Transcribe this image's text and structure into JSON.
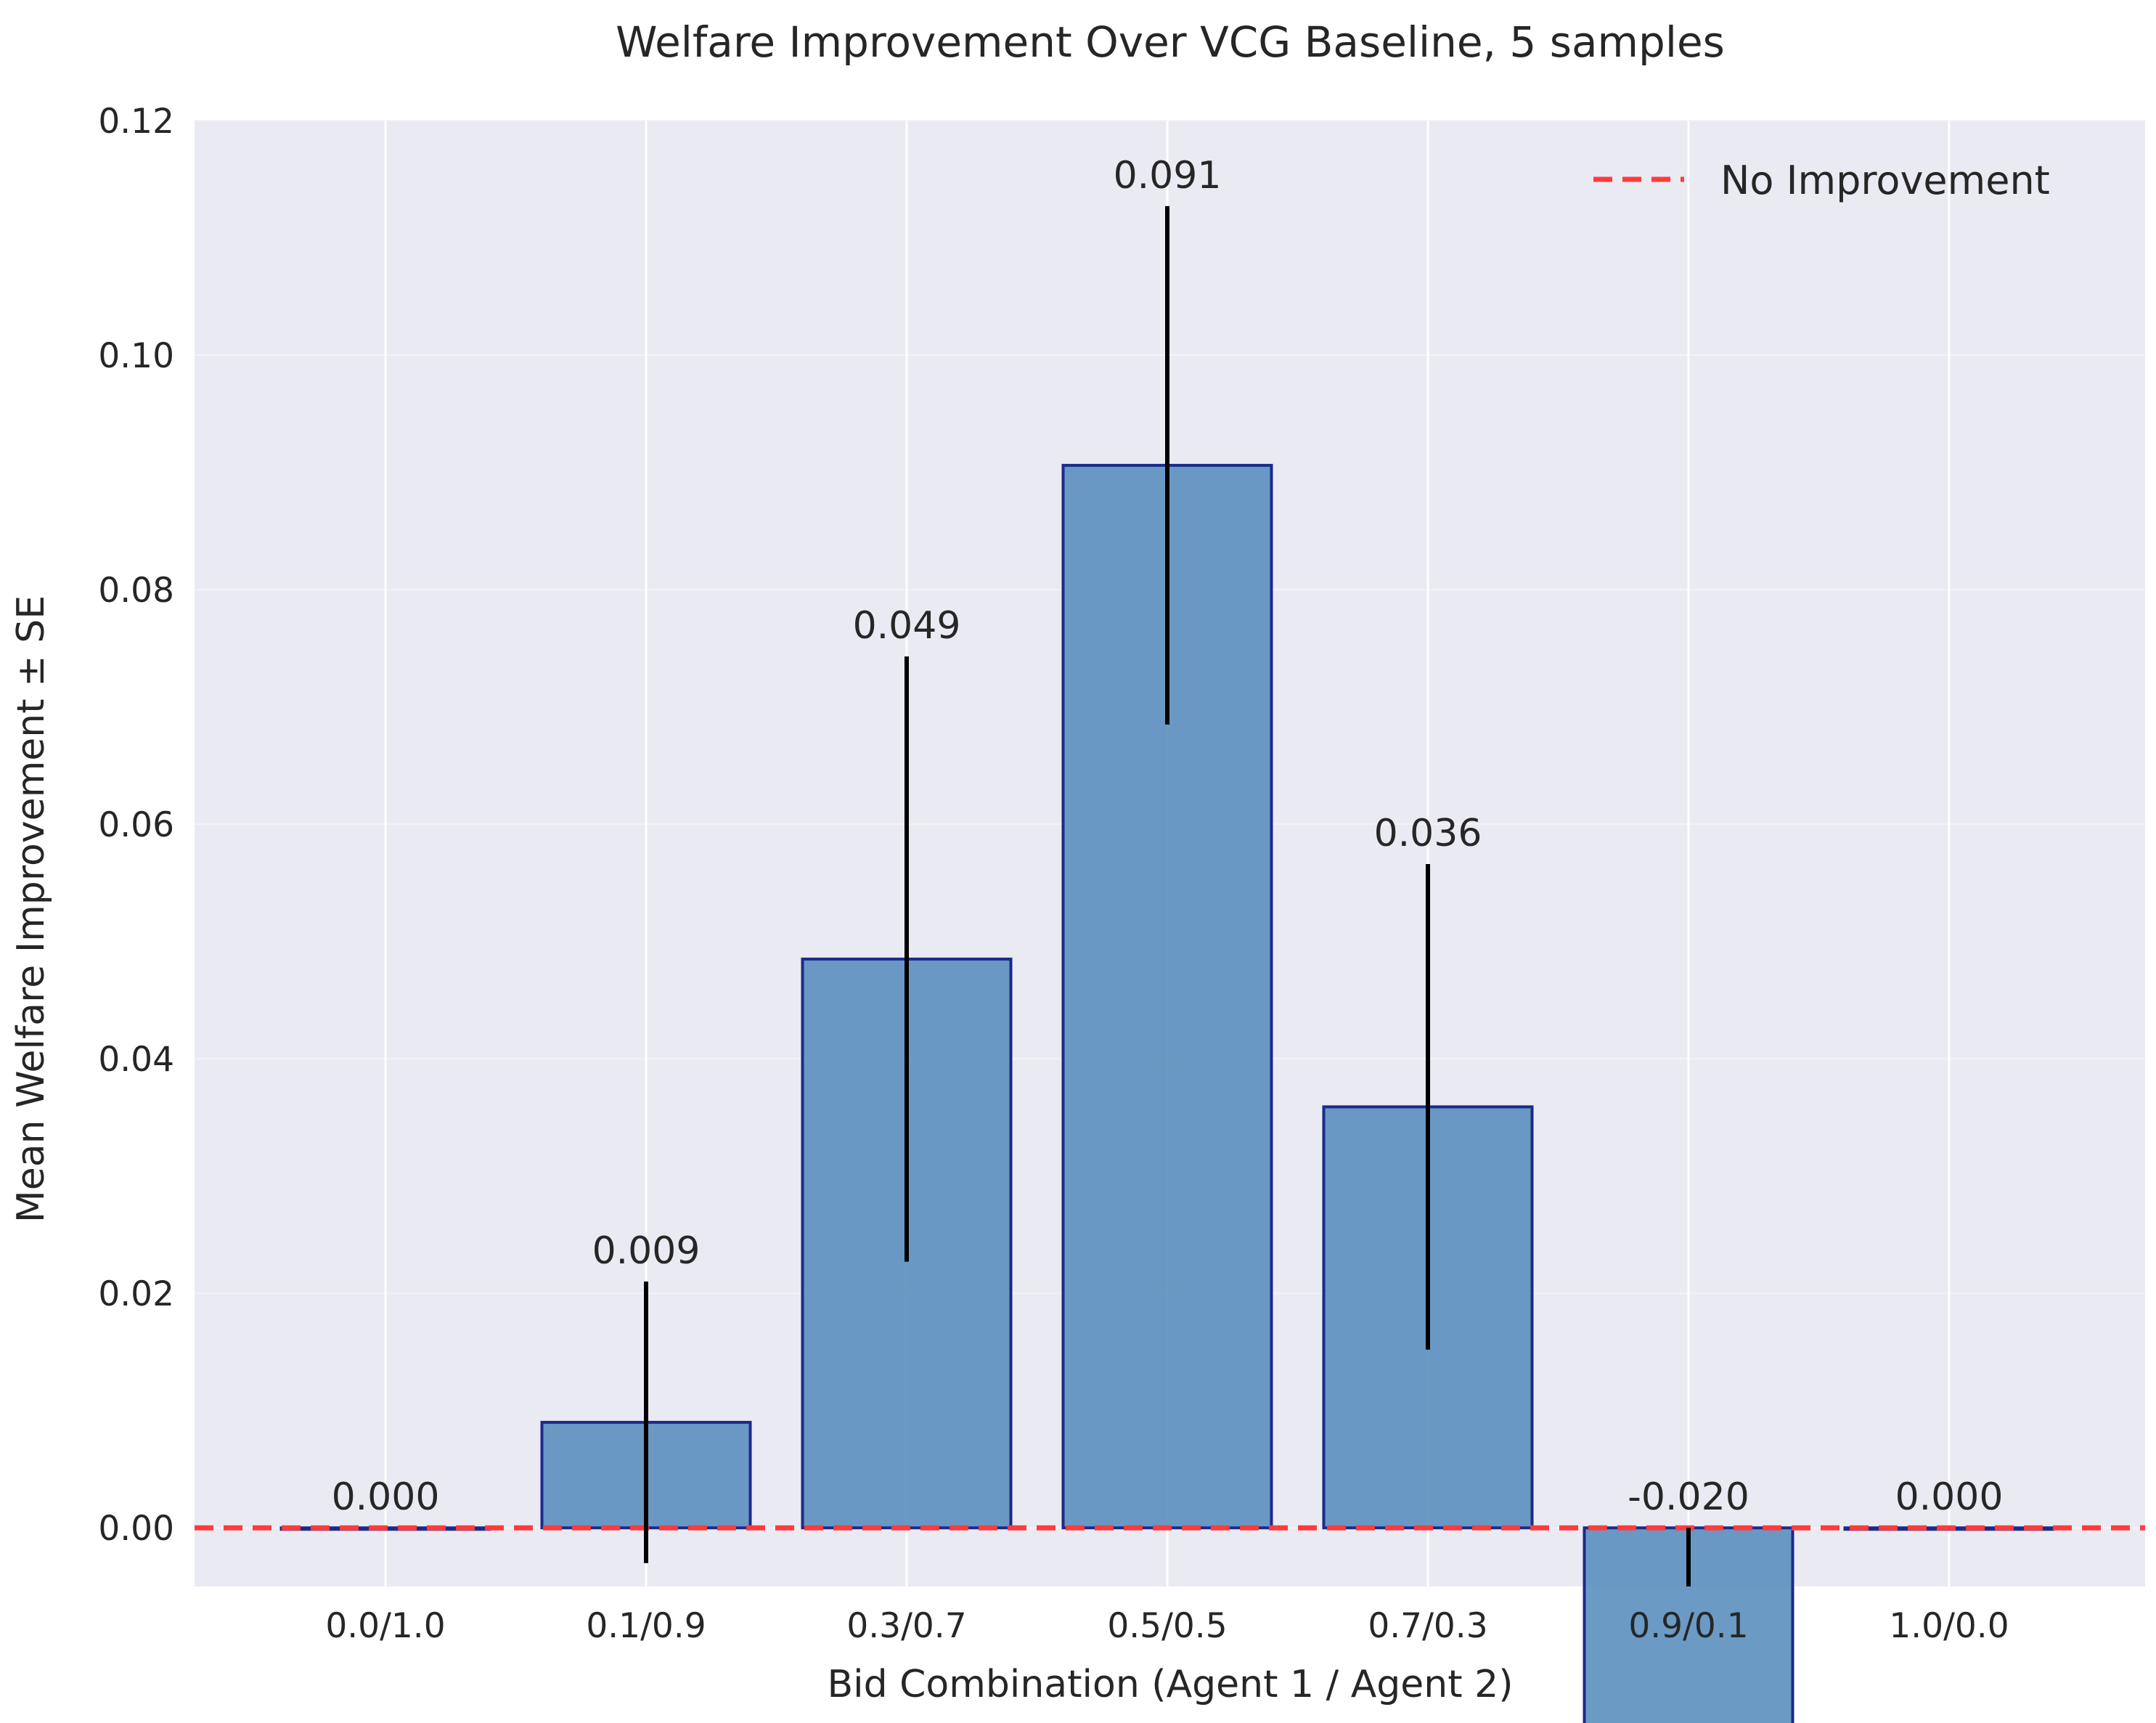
{
  "chart_data": {
    "type": "bar",
    "title": "Welfare Improvement Over VCG Baseline, 5 samples",
    "xlabel": "Bid Combination (Agent 1 / Agent 2)",
    "ylabel": "Mean Welfare Improvement ± SE",
    "categories": [
      "0.0/1.0",
      "0.1/0.9",
      "0.3/0.7",
      "0.5/0.5",
      "0.7/0.3",
      "0.9/0.1",
      "1.0/0.0"
    ],
    "values": [
      0.0,
      0.009,
      0.0485,
      0.0906,
      0.0359,
      -0.0202,
      0.0
    ],
    "errors": [
      0.0,
      0.012,
      0.0258,
      0.0221,
      0.0207,
      0.0202,
      0.0
    ],
    "value_labels": [
      "0.000",
      "0.009",
      "0.049",
      "0.091",
      "0.036",
      "-0.020",
      "0.000"
    ],
    "ylim": [
      -0.005,
      0.12
    ],
    "yticks": [
      0.0,
      0.02,
      0.04,
      0.06,
      0.08,
      0.1,
      0.12
    ],
    "ytick_labels": [
      "0.00",
      "0.02",
      "0.04",
      "0.06",
      "0.08",
      "0.10",
      "0.12"
    ],
    "reference_line": {
      "y": 0.0,
      "label": "No Improvement",
      "color": "#ff3b3b",
      "style": "dashed"
    },
    "legend": {
      "position": "top-right",
      "entries": [
        "No Improvement"
      ]
    },
    "grid": true,
    "colors": {
      "bar_fill": "#5b8fbf",
      "bar_edge": "#1b2a8a",
      "error_bar": "#000000",
      "background": "#eaeaf2",
      "grid": "#ffffff"
    }
  }
}
